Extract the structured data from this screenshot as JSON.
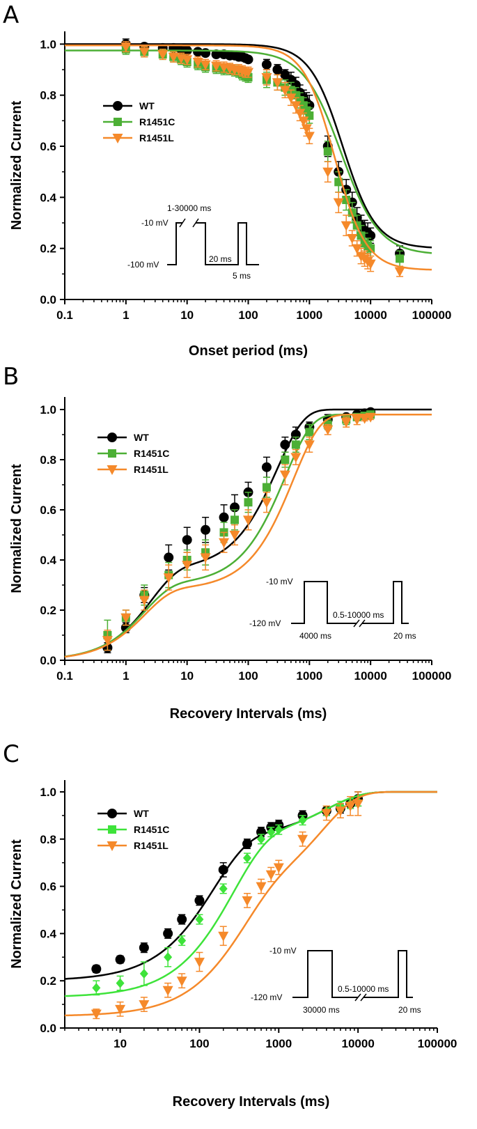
{
  "chart_data": [
    {
      "panel": "A",
      "type": "scatter",
      "xscale": "log",
      "xlabel": "Onset period (ms)",
      "ylabel": "Normalized Current",
      "xlim": [
        0.1,
        100000
      ],
      "ylim": [
        0,
        1.05
      ],
      "xticks": [
        "0.1",
        "1",
        "10",
        "100",
        "1000",
        "10000",
        "100000"
      ],
      "yticks": [
        "0.0",
        "0.2",
        "0.4",
        "0.6",
        "0.8",
        "1.0"
      ],
      "legend": [
        "WT",
        "R1451C",
        "R1451L"
      ],
      "series": [
        {
          "name": "WT",
          "color": "#000000",
          "marker": "circle",
          "x": [
            1,
            2,
            4,
            6,
            8,
            10,
            15,
            20,
            30,
            40,
            50,
            60,
            70,
            80,
            90,
            100,
            200,
            300,
            400,
            500,
            600,
            700,
            800,
            900,
            1000,
            2000,
            3000,
            4000,
            5000,
            6000,
            7000,
            8000,
            9000,
            10000,
            30000
          ],
          "y": [
            1.0,
            0.99,
            0.985,
            0.985,
            0.98,
            0.975,
            0.97,
            0.965,
            0.96,
            0.96,
            0.955,
            0.955,
            0.95,
            0.95,
            0.945,
            0.94,
            0.92,
            0.9,
            0.88,
            0.86,
            0.84,
            0.81,
            0.79,
            0.77,
            0.76,
            0.6,
            0.5,
            0.43,
            0.38,
            0.32,
            0.29,
            0.27,
            0.26,
            0.25,
            0.18
          ],
          "err": [
            0.02,
            0.01,
            0.01,
            0.01,
            0.01,
            0.01,
            0.01,
            0.01,
            0.01,
            0.01,
            0.01,
            0.01,
            0.01,
            0.01,
            0.01,
            0.01,
            0.02,
            0.02,
            0.02,
            0.03,
            0.03,
            0.03,
            0.03,
            0.04,
            0.04,
            0.04,
            0.04,
            0.04,
            0.04,
            0.04,
            0.04,
            0.04,
            0.04,
            0.03,
            0.03
          ],
          "fit": {
            "a": 0.8,
            "x50": 3500,
            "n": 1.6,
            "offset": 0.2
          }
        },
        {
          "name": "R1451C",
          "color": "#4caf35",
          "marker": "square",
          "x": [
            1,
            2,
            4,
            6,
            8,
            10,
            15,
            20,
            30,
            40,
            50,
            60,
            70,
            80,
            90,
            100,
            200,
            300,
            400,
            500,
            600,
            700,
            800,
            900,
            1000,
            2000,
            3000,
            4000,
            5000,
            6000,
            7000,
            8000,
            9000,
            10000,
            30000
          ],
          "y": [
            0.98,
            0.97,
            0.96,
            0.95,
            0.94,
            0.93,
            0.92,
            0.91,
            0.905,
            0.9,
            0.9,
            0.895,
            0.89,
            0.88,
            0.875,
            0.87,
            0.86,
            0.85,
            0.83,
            0.82,
            0.8,
            0.78,
            0.76,
            0.74,
            0.72,
            0.58,
            0.46,
            0.39,
            0.34,
            0.29,
            0.25,
            0.22,
            0.21,
            0.2,
            0.16
          ],
          "err": [
            0.02,
            0.02,
            0.02,
            0.02,
            0.02,
            0.02,
            0.02,
            0.02,
            0.02,
            0.02,
            0.02,
            0.02,
            0.02,
            0.02,
            0.02,
            0.02,
            0.03,
            0.03,
            0.03,
            0.03,
            0.03,
            0.03,
            0.03,
            0.03,
            0.03,
            0.04,
            0.04,
            0.04,
            0.04,
            0.04,
            0.04,
            0.04,
            0.03,
            0.03,
            0.03
          ],
          "fit": {
            "a": 0.8,
            "x50": 3300,
            "n": 1.4,
            "offset": 0.175
          }
        },
        {
          "name": "R1451L",
          "color": "#f5892a",
          "marker": "triangle-down",
          "x": [
            1,
            2,
            4,
            6,
            8,
            10,
            15,
            20,
            30,
            40,
            50,
            60,
            70,
            80,
            90,
            100,
            200,
            300,
            400,
            500,
            600,
            700,
            800,
            900,
            1000,
            2000,
            3000,
            4000,
            5000,
            6000,
            7000,
            8000,
            9000,
            10000,
            30000
          ],
          "y": [
            0.99,
            0.97,
            0.96,
            0.95,
            0.945,
            0.94,
            0.93,
            0.92,
            0.915,
            0.91,
            0.905,
            0.9,
            0.9,
            0.895,
            0.89,
            0.89,
            0.87,
            0.85,
            0.82,
            0.79,
            0.76,
            0.73,
            0.7,
            0.67,
            0.64,
            0.5,
            0.38,
            0.29,
            0.24,
            0.2,
            0.17,
            0.16,
            0.15,
            0.14,
            0.11
          ],
          "err": [
            0.02,
            0.02,
            0.02,
            0.02,
            0.02,
            0.02,
            0.02,
            0.02,
            0.02,
            0.02,
            0.02,
            0.02,
            0.02,
            0.02,
            0.02,
            0.02,
            0.03,
            0.03,
            0.03,
            0.03,
            0.03,
            0.03,
            0.03,
            0.03,
            0.03,
            0.04,
            0.04,
            0.04,
            0.03,
            0.03,
            0.03,
            0.03,
            0.03,
            0.03,
            0.02
          ],
          "fit": {
            "a": 0.88,
            "x50": 2600,
            "n": 1.7,
            "offset": 0.115
          }
        }
      ],
      "inset": {
        "labels": [
          "1-30000 ms",
          "-10 mV",
          "-100 mV",
          "20 ms",
          "5 ms"
        ]
      }
    },
    {
      "panel": "B",
      "type": "scatter",
      "xscale": "log",
      "xlabel": "Recovery Intervals (ms)",
      "ylabel": "Normalized Current",
      "xlim": [
        0.1,
        100000
      ],
      "ylim": [
        0,
        1.05
      ],
      "xticks": [
        "0.1",
        "1",
        "10",
        "100",
        "1000",
        "10000",
        "100000"
      ],
      "yticks": [
        "0.0",
        "0.2",
        "0.4",
        "0.6",
        "0.8",
        "1.0"
      ],
      "legend": [
        "WT",
        "R1451C",
        "R1451L"
      ],
      "series": [
        {
          "name": "WT",
          "color": "#000000",
          "marker": "circle",
          "x": [
            0.5,
            1,
            2,
            5,
            10,
            20,
            40,
            60,
            100,
            200,
            400,
            600,
            1000,
            2000,
            4000,
            6000,
            8000,
            10000
          ],
          "y": [
            0.05,
            0.13,
            0.26,
            0.41,
            0.48,
            0.52,
            0.57,
            0.61,
            0.67,
            0.77,
            0.86,
            0.9,
            0.93,
            0.96,
            0.97,
            0.98,
            0.985,
            0.99
          ],
          "err": [
            0.02,
            0.02,
            0.03,
            0.05,
            0.05,
            0.05,
            0.05,
            0.05,
            0.04,
            0.04,
            0.03,
            0.03,
            0.02,
            0.02,
            0.01,
            0.01,
            0.01,
            0.01
          ],
          "fit": {
            "components": [
              {
                "a": 0.36,
                "tau": 2.5
              },
              {
                "a": 0.64,
                "tau": 300
              }
            ]
          }
        },
        {
          "name": "R1451C",
          "color": "#4caf35",
          "marker": "square",
          "x": [
            0.5,
            1,
            2,
            5,
            10,
            20,
            40,
            60,
            100,
            200,
            400,
            600,
            1000,
            2000,
            4000,
            6000,
            8000,
            10000
          ],
          "y": [
            0.1,
            0.17,
            0.26,
            0.34,
            0.4,
            0.43,
            0.51,
            0.56,
            0.63,
            0.69,
            0.8,
            0.86,
            0.91,
            0.94,
            0.96,
            0.97,
            0.975,
            0.98
          ],
          "err": [
            0.06,
            0.03,
            0.04,
            0.05,
            0.04,
            0.05,
            0.04,
            0.04,
            0.04,
            0.04,
            0.03,
            0.03,
            0.03,
            0.02,
            0.02,
            0.01,
            0.01,
            0.01
          ],
          "fit": {
            "components": [
              {
                "a": 0.3,
                "tau": 2
              },
              {
                "a": 0.68,
                "tau": 400
              }
            ]
          }
        },
        {
          "name": "R1451L",
          "color": "#f5892a",
          "marker": "triangle-down",
          "x": [
            0.5,
            1,
            2,
            5,
            10,
            20,
            40,
            60,
            100,
            200,
            400,
            600,
            1000,
            2000,
            4000,
            6000,
            8000,
            10000
          ],
          "y": [
            0.08,
            0.17,
            0.24,
            0.33,
            0.38,
            0.41,
            0.47,
            0.5,
            0.56,
            0.63,
            0.74,
            0.81,
            0.86,
            0.92,
            0.95,
            0.96,
            0.965,
            0.97
          ],
          "err": [
            0.04,
            0.03,
            0.04,
            0.05,
            0.05,
            0.05,
            0.04,
            0.04,
            0.04,
            0.04,
            0.04,
            0.03,
            0.03,
            0.02,
            0.02,
            0.02,
            0.01,
            0.01
          ],
          "fit": {
            "components": [
              {
                "a": 0.28,
                "tau": 2
              },
              {
                "a": 0.7,
                "tau": 550
              }
            ]
          }
        }
      ],
      "inset": {
        "labels": [
          "-10 mV",
          "-120 mV",
          "4000 ms",
          "0.5-10000 ms",
          "20 ms"
        ]
      }
    },
    {
      "panel": "C",
      "type": "scatter",
      "xscale": "log",
      "xlabel": "Recovery Intervals (ms)",
      "ylabel": "Normalized Current",
      "xlim": [
        2,
        100000
      ],
      "ylim": [
        0,
        1.05
      ],
      "xticks": [
        "10",
        "100",
        "1000",
        "10000",
        "100000"
      ],
      "yticks": [
        "0.0",
        "0.2",
        "0.4",
        "0.6",
        "0.8",
        "1.0"
      ],
      "legend": [
        "WT",
        "R1451C",
        "R1451L"
      ],
      "series": [
        {
          "name": "WT",
          "color": "#000000",
          "marker": "circle",
          "x": [
            5,
            10,
            20,
            40,
            60,
            100,
            200,
            400,
            600,
            800,
            1000,
            2000,
            4000,
            6000,
            8000,
            10000
          ],
          "y": [
            0.25,
            0.29,
            0.34,
            0.4,
            0.46,
            0.54,
            0.67,
            0.78,
            0.83,
            0.85,
            0.86,
            0.9,
            0.92,
            0.93,
            0.95,
            0.97
          ],
          "err": [
            0.015,
            0.015,
            0.02,
            0.02,
            0.02,
            0.02,
            0.03,
            0.02,
            0.02,
            0.02,
            0.02,
            0.02,
            0.02,
            0.02,
            0.02,
            0.03
          ],
          "fit": {
            "offset": 0.2,
            "components": [
              {
                "a": 0.6,
                "tau": 150
              },
              {
                "a": 0.2,
                "tau": 4000
              }
            ]
          }
        },
        {
          "name": "R1451C",
          "color": "#3ee33a",
          "marker": "diamond",
          "x": [
            5,
            10,
            20,
            40,
            60,
            100,
            200,
            400,
            600,
            800,
            1000,
            2000,
            4000,
            6000,
            8000,
            10000
          ],
          "y": [
            0.17,
            0.19,
            0.23,
            0.3,
            0.37,
            0.46,
            0.59,
            0.72,
            0.8,
            0.83,
            0.84,
            0.88,
            0.92,
            0.94,
            0.95,
            0.96
          ],
          "err": [
            0.03,
            0.03,
            0.05,
            0.04,
            0.02,
            0.02,
            0.02,
            0.02,
            0.02,
            0.02,
            0.02,
            0.02,
            0.02,
            0.02,
            0.02,
            0.02
          ],
          "fit": {
            "offset": 0.13,
            "components": [
              {
                "a": 0.67,
                "tau": 260
              },
              {
                "a": 0.2,
                "tau": 4000
              }
            ]
          }
        },
        {
          "name": "R1451L",
          "color": "#f5892a",
          "marker": "triangle-down",
          "x": [
            5,
            10,
            20,
            40,
            60,
            100,
            200,
            400,
            600,
            800,
            1000,
            2000,
            4000,
            6000,
            8000,
            10000
          ],
          "y": [
            0.06,
            0.08,
            0.1,
            0.16,
            0.2,
            0.28,
            0.39,
            0.54,
            0.6,
            0.65,
            0.68,
            0.8,
            0.91,
            0.92,
            0.94,
            0.95
          ],
          "err": [
            0.02,
            0.03,
            0.03,
            0.03,
            0.03,
            0.04,
            0.04,
            0.03,
            0.03,
            0.03,
            0.03,
            0.03,
            0.03,
            0.03,
            0.04,
            0.05
          ],
          "fit": {
            "offset": 0.05,
            "components": [
              {
                "a": 0.5,
                "tau": 330
              },
              {
                "a": 0.45,
                "tau": 3500
              }
            ]
          }
        }
      ],
      "inset": {
        "labels": [
          "-10 mV",
          "-120 mV",
          "30000 ms",
          "0.5-10000 ms",
          "20 ms"
        ]
      }
    }
  ],
  "panel_labels": [
    "A",
    "B",
    "C"
  ]
}
